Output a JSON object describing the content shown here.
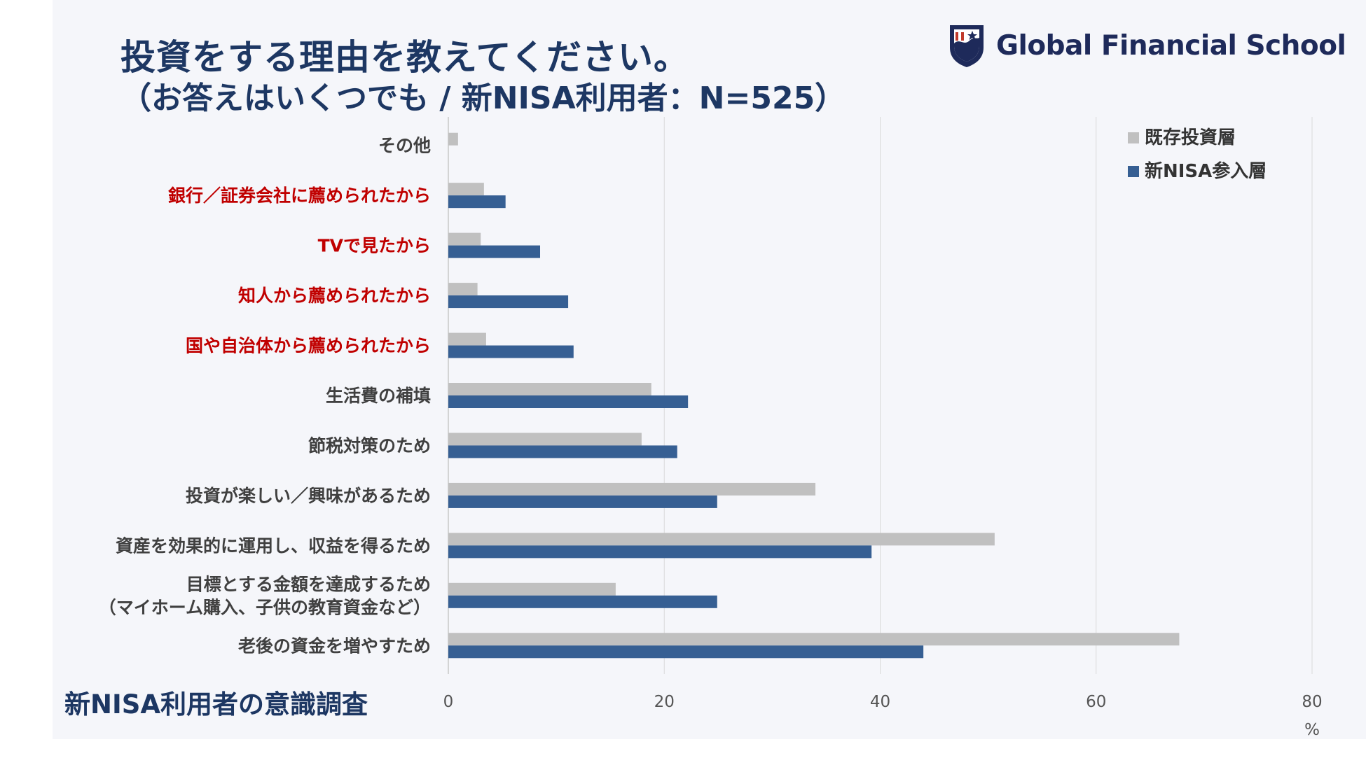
{
  "header": {
    "title": "投資をする理由を教えてください。",
    "subtitle": "（お答えはいくつでも / 新NISA利用者：N=525）",
    "logo_text": "Global Financial School",
    "survey_name": "新NISA利用者の意識調査"
  },
  "colors": {
    "existing": "#c0c0c0",
    "new": "#365f93",
    "highlight_text": "#c00000",
    "normal_text": "#404040",
    "title": "#1d3763"
  },
  "chart_data": {
    "type": "bar",
    "orientation": "horizontal",
    "categories": [
      [
        "その他"
      ],
      [
        "銀行／証券会社に薦められたから"
      ],
      [
        "TVで見たから"
      ],
      [
        "知人から薦められたから"
      ],
      [
        "国や自治体から薦められたから"
      ],
      [
        "生活費の補填"
      ],
      [
        "節税対策のため"
      ],
      [
        "投資が楽しい／興味があるため"
      ],
      [
        "資産を効果的に運用し、収益を得るため"
      ],
      [
        "目標とする金額を達成するため",
        "（マイホーム購入、子供の教育資金など）"
      ],
      [
        "老後の資金を増やすため"
      ]
    ],
    "highlighted": [
      false,
      true,
      true,
      true,
      true,
      false,
      false,
      false,
      false,
      false,
      false
    ],
    "series": [
      {
        "name": "既存投資層",
        "values": [
          0.9,
          3.3,
          3.0,
          2.7,
          3.5,
          18.8,
          17.9,
          34.0,
          50.6,
          15.5,
          67.7
        ]
      },
      {
        "name": "新NISA参入層",
        "values": [
          0,
          5.3,
          8.5,
          11.1,
          11.6,
          22.2,
          21.2,
          24.9,
          39.2,
          24.9,
          44.0
        ]
      }
    ],
    "xlim": [
      0,
      80
    ],
    "xticks": [
      "0",
      "20",
      "40",
      "60",
      "80"
    ],
    "x_unit": "%",
    "grid": true,
    "legend_position": "top-right"
  }
}
